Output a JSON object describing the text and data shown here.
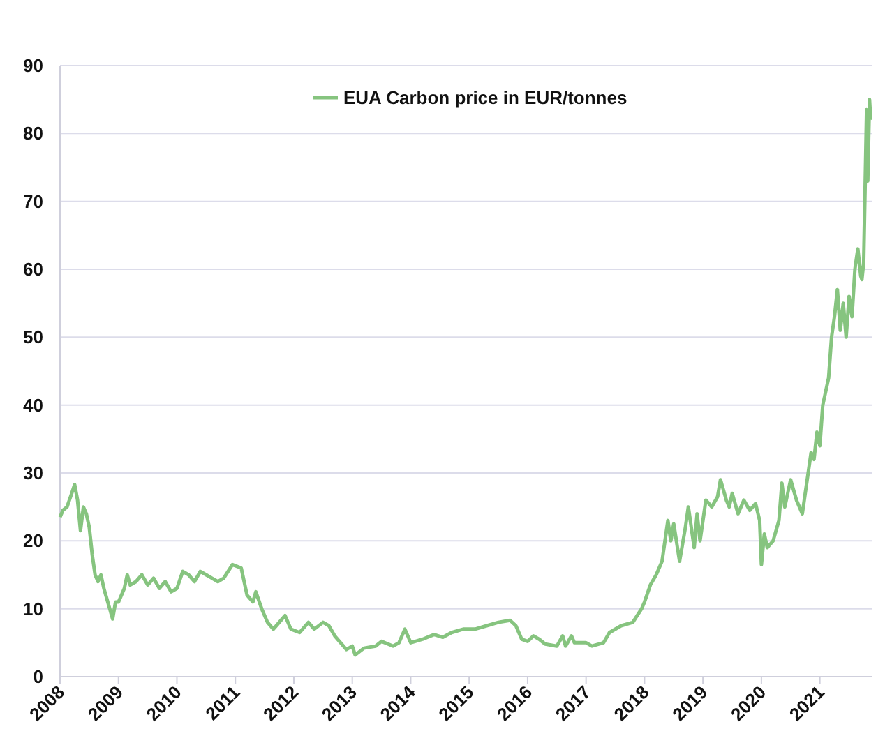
{
  "chart_data": {
    "type": "line",
    "legend": "top",
    "grid": "y",
    "xlim": [
      2008,
      2021.9
    ],
    "ylim": [
      0,
      90
    ],
    "xticks": [
      2008,
      2009,
      2010,
      2011,
      2012,
      2013,
      2014,
      2015,
      2016,
      2017,
      2018,
      2019,
      2020,
      2021
    ],
    "yticks": [
      0,
      10,
      20,
      30,
      40,
      50,
      60,
      70,
      80,
      90
    ],
    "series": [
      {
        "name": "EUA Carbon price in EUR/tonnes",
        "color": "#86c47f",
        "x": [
          2008.0,
          2008.05,
          2008.12,
          2008.2,
          2008.25,
          2008.3,
          2008.35,
          2008.4,
          2008.45,
          2008.5,
          2008.55,
          2008.6,
          2008.65,
          2008.7,
          2008.75,
          2008.85,
          2008.9,
          2008.95,
          2009.0,
          2009.1,
          2009.15,
          2009.2,
          2009.3,
          2009.4,
          2009.5,
          2009.6,
          2009.7,
          2009.8,
          2009.9,
          2010.0,
          2010.1,
          2010.2,
          2010.3,
          2010.4,
          2010.5,
          2010.6,
          2010.7,
          2010.8,
          2010.95,
          2011.1,
          2011.2,
          2011.3,
          2011.35,
          2011.45,
          2011.55,
          2011.65,
          2011.7,
          2011.85,
          2011.95,
          2012.1,
          2012.25,
          2012.35,
          2012.5,
          2012.6,
          2012.7,
          2012.8,
          2012.9,
          2013.0,
          2013.05,
          2013.2,
          2013.4,
          2013.5,
          2013.7,
          2013.8,
          2013.9,
          2014.0,
          2014.2,
          2014.4,
          2014.55,
          2014.7,
          2014.9,
          2015.1,
          2015.3,
          2015.5,
          2015.7,
          2015.8,
          2015.9,
          2016.0,
          2016.1,
          2016.2,
          2016.3,
          2016.5,
          2016.6,
          2016.65,
          2016.75,
          2016.8,
          2017.0,
          2017.1,
          2017.3,
          2017.4,
          2017.6,
          2017.8,
          2017.95,
          2018.0,
          2018.1,
          2018.2,
          2018.3,
          2018.35,
          2018.4,
          2018.45,
          2018.5,
          2018.6,
          2018.7,
          2018.75,
          2018.85,
          2018.9,
          2018.95,
          2019.05,
          2019.15,
          2019.25,
          2019.3,
          2019.4,
          2019.45,
          2019.5,
          2019.6,
          2019.7,
          2019.8,
          2019.9,
          2019.97,
          2020.0,
          2020.05,
          2020.1,
          2020.2,
          2020.3,
          2020.35,
          2020.4,
          2020.5,
          2020.6,
          2020.7,
          2020.75,
          2020.8,
          2020.85,
          2020.9,
          2020.95,
          2021.0,
          2021.05,
          2021.1,
          2021.15,
          2021.2,
          2021.25,
          2021.3,
          2021.35,
          2021.4,
          2021.45,
          2021.5,
          2021.55,
          2021.6,
          2021.65,
          2021.7,
          2021.72,
          2021.75,
          2021.8,
          2021.82,
          2021.85,
          2021.87
        ],
        "values": [
          23.5,
          24.5,
          25,
          27,
          28.3,
          26,
          21.5,
          25,
          24,
          22,
          18,
          15,
          14,
          15,
          13,
          10,
          8.5,
          11,
          11,
          13,
          15,
          13.5,
          14,
          15,
          13.5,
          14.5,
          13,
          14,
          12.5,
          13,
          15.5,
          15,
          14,
          15.5,
          15,
          14.5,
          14,
          14.5,
          16.5,
          16,
          12,
          11,
          12.5,
          10,
          8,
          7,
          7.5,
          9,
          7,
          6.5,
          8,
          7,
          8,
          7.5,
          6,
          5,
          4,
          4.5,
          3.2,
          4.2,
          4.5,
          5.2,
          4.5,
          5,
          7,
          5,
          5.5,
          6.2,
          5.8,
          6.5,
          7,
          7,
          7.5,
          8,
          8.3,
          7.5,
          5.5,
          5.2,
          6,
          5.5,
          4.8,
          4.5,
          6,
          4.5,
          6,
          5,
          5,
          4.5,
          5,
          6.5,
          7.5,
          8,
          10,
          11,
          13.5,
          15,
          17,
          20,
          23,
          20,
          22.5,
          17,
          22,
          25,
          19,
          24,
          20,
          26,
          25,
          26.5,
          29,
          26,
          25,
          27,
          24,
          26,
          24.5,
          25.5,
          23,
          16.5,
          21,
          19,
          20,
          23,
          28.5,
          25,
          29,
          26,
          24,
          27,
          30,
          33,
          32,
          36,
          34,
          40,
          42,
          44,
          50,
          53,
          57,
          51,
          55,
          50,
          56,
          53,
          60,
          63,
          59,
          58.5,
          61,
          83.5,
          73,
          85,
          82
        ]
      }
    ]
  }
}
